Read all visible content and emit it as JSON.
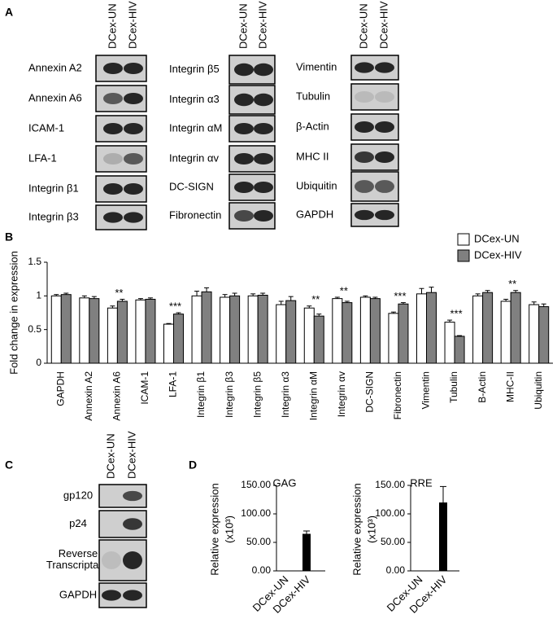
{
  "panel_labels": [
    "A",
    "B",
    "C",
    "D"
  ],
  "blots": [
    {
      "lanes": [
        "DCex-UN",
        "DCex-HIV"
      ],
      "rows": [
        "Annexin A2",
        "Annexin A6",
        "ICAM-1",
        "LFA-1",
        "Integrin β1",
        "Integrin β3"
      ]
    },
    {
      "lanes": [
        "DCex-UN",
        "DCex-HIV"
      ],
      "rows": [
        "Integrin β5",
        "Integrin α3",
        "Integrin αM",
        "Integrin αv",
        "DC-SIGN",
        "Fibronectin"
      ]
    },
    {
      "lanes": [
        "DCex-UN",
        "DCex-HIV"
      ],
      "rows": [
        "Vimentin",
        "Tubulin",
        "β-Actin",
        "MHC II",
        "Ubiquitin",
        "GAPDH"
      ]
    },
    {
      "lanes": [
        "DCex-UN",
        "DCex-HIV"
      ],
      "rows": [
        "gp120",
        "p24",
        [
          "Reverse",
          "Transcriptase"
        ],
        "GAPDH"
      ]
    }
  ],
  "chart_data": [
    {
      "type": "bar",
      "y_label": "Fold change in expression",
      "categories": [
        "GAPDH",
        "Annexin A2",
        "Annexin A6",
        "ICAM-1",
        "LFA-1",
        "Integrin β1",
        "Integrin β3",
        "Integrin β5",
        "Integrin α3",
        "Integrin αM",
        "Integrin αv",
        "DC-SIGN",
        "Fibronectin",
        "Vimentin",
        "Tubulin",
        "B-Actin",
        "MHC-II",
        "Ubiquitin"
      ],
      "series": [
        {
          "name": "DCex-UN",
          "color": "#ffffff",
          "values": [
            1.0,
            0.97,
            0.82,
            0.94,
            0.58,
            1.0,
            0.98,
            1.0,
            0.87,
            0.82,
            0.96,
            0.98,
            0.74,
            1.03,
            0.61,
            1.0,
            0.92,
            0.87
          ],
          "errors": [
            0.02,
            0.03,
            0.03,
            0.02,
            0.01,
            0.07,
            0.04,
            0.03,
            0.05,
            0.03,
            0.02,
            0.02,
            0.02,
            0.08,
            0.03,
            0.03,
            0.03,
            0.04
          ]
        },
        {
          "name": "DCex-HIV",
          "color": "#808080",
          "values": [
            1.02,
            0.96,
            0.92,
            0.95,
            0.73,
            1.06,
            1.0,
            1.01,
            0.93,
            0.7,
            0.9,
            0.96,
            0.88,
            1.05,
            0.4,
            1.05,
            1.05,
            0.84
          ],
          "errors": [
            0.02,
            0.03,
            0.03,
            0.02,
            0.02,
            0.06,
            0.04,
            0.03,
            0.06,
            0.03,
            0.02,
            0.02,
            0.02,
            0.08,
            0.01,
            0.03,
            0.03,
            0.04
          ]
        }
      ],
      "significance": [
        null,
        null,
        "**",
        null,
        "***",
        null,
        null,
        null,
        null,
        "**",
        "**",
        null,
        "***",
        null,
        "***",
        null,
        "**",
        null
      ],
      "ylim": [
        0,
        1.5
      ],
      "yticks": [
        0,
        0.5,
        1,
        1.5
      ],
      "legend": "upper right"
    },
    {
      "type": "bar",
      "title": "GAG",
      "y_label": [
        "Relative expression",
        "(x10³)"
      ],
      "categories": [
        "DCex-UN",
        "DCex-HIV"
      ],
      "values": [
        0,
        65
      ],
      "errors": [
        0,
        5
      ],
      "color": "#000000",
      "ylim": [
        0,
        150
      ],
      "yticks": [
        {
          "value": 0,
          "label": "0.00"
        },
        {
          "value": 50,
          "label": "50.00"
        },
        {
          "value": 100,
          "label": "100.00"
        },
        {
          "value": 150,
          "label": "150.00"
        }
      ]
    },
    {
      "type": "bar",
      "title": "RRE",
      "y_label": [
        "Relative expression",
        "(x10³)"
      ],
      "categories": [
        "DCex-UN",
        "DCex-HIV"
      ],
      "values": [
        0,
        120
      ],
      "errors": [
        0,
        28
      ],
      "color": "#000000",
      "ylim": [
        0,
        150
      ],
      "yticks": [
        {
          "value": 0,
          "label": "0.00"
        },
        {
          "value": 50,
          "label": "50.00"
        },
        {
          "value": 100,
          "label": "100.00"
        },
        {
          "value": 150,
          "label": "150.00"
        }
      ]
    }
  ]
}
